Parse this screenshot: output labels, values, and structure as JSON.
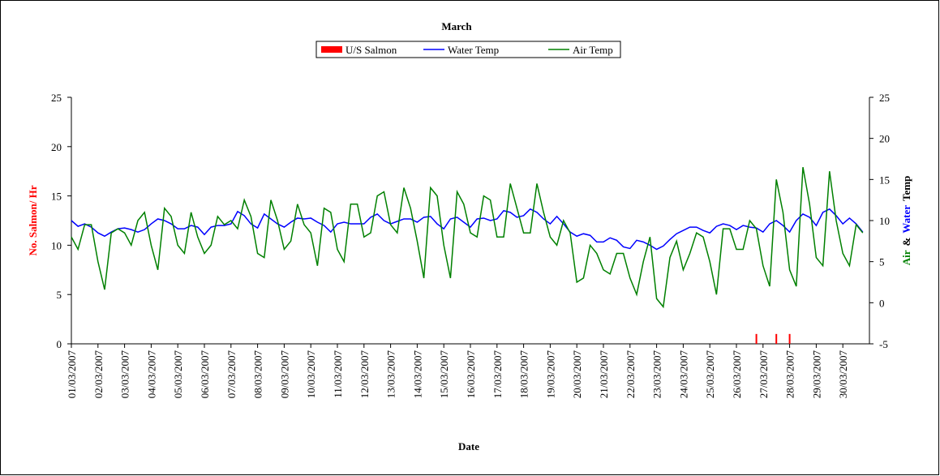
{
  "chart_data": {
    "type": "line",
    "title": "March",
    "xlabel": "Date",
    "ylabel": "No. Salmon/ Hr",
    "y2label_parts": [
      {
        "text": "Air",
        "color": "#008000"
      },
      {
        "text": "&",
        "color": "#000000"
      },
      {
        "text": "Water",
        "color": "#0000ff"
      },
      {
        "text": "Temp",
        "color": "#000000"
      }
    ],
    "xlim": [
      0,
      30
    ],
    "ylim": [
      0,
      25
    ],
    "y2lim": [
      -5,
      25
    ],
    "yticks": [
      0,
      5,
      10,
      15,
      20,
      25
    ],
    "y2ticks": [
      -5,
      0,
      5,
      10,
      15,
      20,
      25
    ],
    "xticks": [
      {
        "value": 0,
        "label": "01/03/2007"
      },
      {
        "value": 1,
        "label": "02/03/2007"
      },
      {
        "value": 2,
        "label": "03/03/2007"
      },
      {
        "value": 3,
        "label": "04/03/2007"
      },
      {
        "value": 4,
        "label": "05/03/2007"
      },
      {
        "value": 5,
        "label": "06/03/2007"
      },
      {
        "value": 6,
        "label": "07/03/2007"
      },
      {
        "value": 7,
        "label": "08/03/2007"
      },
      {
        "value": 8,
        "label": "09/03/2007"
      },
      {
        "value": 9,
        "label": "10/03/2007"
      },
      {
        "value": 10,
        "label": "11/03/2007"
      },
      {
        "value": 11,
        "label": "12/03/2007"
      },
      {
        "value": 12,
        "label": "13/03/2007"
      },
      {
        "value": 13,
        "label": "14/03/2007"
      },
      {
        "value": 14,
        "label": "15/03/2007"
      },
      {
        "value": 15,
        "label": "16/03/2007"
      },
      {
        "value": 16,
        "label": "17/03/2007"
      },
      {
        "value": 17,
        "label": "18/03/2007"
      },
      {
        "value": 18,
        "label": "19/03/2007"
      },
      {
        "value": 19,
        "label": "20/03/2007"
      },
      {
        "value": 20,
        "label": "21/03/2007"
      },
      {
        "value": 21,
        "label": "22/03/2007"
      },
      {
        "value": 22,
        "label": "23/03/2007"
      },
      {
        "value": 23,
        "label": "24/03/2007"
      },
      {
        "value": 24,
        "label": "25/03/2007"
      },
      {
        "value": 25,
        "label": "26/03/2007"
      },
      {
        "value": 26,
        "label": "27/03/2007"
      },
      {
        "value": 27,
        "label": "28/03/2007"
      },
      {
        "value": 28,
        "label": "29/03/2007"
      },
      {
        "value": 29,
        "label": "30/03/2007"
      }
    ],
    "x": [
      0,
      0.25,
      0.5,
      0.75,
      1,
      1.25,
      1.5,
      1.75,
      2,
      2.25,
      2.5,
      2.75,
      3,
      3.25,
      3.5,
      3.75,
      4,
      4.25,
      4.5,
      4.75,
      5,
      5.25,
      5.5,
      5.75,
      6,
      6.25,
      6.5,
      6.75,
      7,
      7.25,
      7.5,
      7.75,
      8,
      8.25,
      8.5,
      8.75,
      9,
      9.25,
      9.5,
      9.75,
      10,
      10.25,
      10.5,
      10.75,
      11,
      11.25,
      11.5,
      11.75,
      12,
      12.25,
      12.5,
      12.75,
      13,
      13.25,
      13.5,
      13.75,
      14,
      14.25,
      14.5,
      14.75,
      15,
      15.25,
      15.5,
      15.75,
      16,
      16.25,
      16.5,
      16.75,
      17,
      17.25,
      17.5,
      17.75,
      18,
      18.25,
      18.5,
      18.75,
      19,
      19.25,
      19.5,
      19.75,
      20,
      20.25,
      20.5,
      20.75,
      21,
      21.25,
      21.5,
      21.75,
      22,
      22.25,
      22.5,
      22.75,
      23,
      23.25,
      23.5,
      23.75,
      24,
      24.25,
      24.5,
      24.75,
      25,
      25.25,
      25.5,
      25.75,
      26,
      26.25,
      26.5,
      26.75,
      27,
      27.25,
      27.5,
      27.75,
      28,
      28.25,
      28.5,
      28.75,
      29,
      29.25,
      29.5,
      29.75
    ],
    "series": [
      {
        "name": "U/S Salmon",
        "color": "#ff0000",
        "kind": "bar",
        "x": [
          25.75,
          26.5,
          27
        ],
        "values": [
          1,
          1,
          1
        ]
      },
      {
        "name": "Water Temp",
        "color": "#0000ff",
        "kind": "line",
        "axis": "y2",
        "values": [
          10,
          9.3,
          9.6,
          9.2,
          8.5,
          8.1,
          8.6,
          9.0,
          9.1,
          8.9,
          8.6,
          8.9,
          9.6,
          10.2,
          10.0,
          9.6,
          9.0,
          9.0,
          9.4,
          9.2,
          8.3,
          9.2,
          9.4,
          9.4,
          9.6,
          11.1,
          10.6,
          9.6,
          9.1,
          10.8,
          10.2,
          9.6,
          9.2,
          9.8,
          10.3,
          10.2,
          10.3,
          9.8,
          9.4,
          8.6,
          9.6,
          9.8,
          9.6,
          9.6,
          9.6,
          10.4,
          10.8,
          10.0,
          9.6,
          9.9,
          10.2,
          10.2,
          9.8,
          10.4,
          10.5,
          9.6,
          9.0,
          10.2,
          10.4,
          9.8,
          9.2,
          10.2,
          10.3,
          10.0,
          10.2,
          11.2,
          11.0,
          10.4,
          10.6,
          11.4,
          11.0,
          10.2,
          9.6,
          10.5,
          9.6,
          8.6,
          8.1,
          8.4,
          8.2,
          7.4,
          7.4,
          7.9,
          7.6,
          6.8,
          6.6,
          7.6,
          7.4,
          7.0,
          6.5,
          6.9,
          7.7,
          8.4,
          8.8,
          9.2,
          9.2,
          8.8,
          8.5,
          9.3,
          9.6,
          9.4,
          8.9,
          9.4,
          9.2,
          9.1,
          8.6,
          9.6,
          10.0,
          9.4,
          8.6,
          10.0,
          10.8,
          10.4,
          9.4,
          11.0,
          11.4,
          10.6,
          9.6,
          10.3,
          9.6,
          8.6
        ]
      },
      {
        "name": "Air Temp",
        "color": "#008000",
        "kind": "line",
        "axis": "y2",
        "values": [
          8,
          6.5,
          9.5,
          9.5,
          5,
          1.6,
          8.5,
          9.0,
          8.5,
          7,
          10,
          11,
          7,
          4,
          11.5,
          10.5,
          7,
          6,
          11,
          8,
          6,
          7,
          10.5,
          9.5,
          10,
          9,
          12.5,
          10.5,
          6,
          5.5,
          12.5,
          10,
          6.5,
          7.5,
          12,
          9.5,
          8.5,
          4.5,
          11.5,
          11,
          6.5,
          5,
          12,
          12,
          8,
          8.5,
          13,
          13.5,
          9.5,
          8.5,
          14,
          11.5,
          7.5,
          3,
          14,
          13,
          7,
          3,
          13.5,
          12,
          8.5,
          8,
          13,
          12.5,
          8,
          8,
          14.5,
          11.5,
          8.5,
          8.5,
          14.5,
          11,
          8,
          7,
          10,
          8.5,
          2.5,
          3,
          7,
          6,
          4,
          3.5,
          6,
          6,
          3,
          1,
          5,
          8,
          0.5,
          -0.5,
          5.5,
          7.5,
          4,
          6,
          8.5,
          8,
          5,
          1,
          9,
          9,
          6.5,
          6.5,
          10,
          9,
          4.5,
          2,
          15,
          11,
          4,
          2,
          16.5,
          12,
          5.5,
          4.5,
          16,
          10,
          6,
          4.5,
          9.5,
          8.5
        ]
      }
    ]
  }
}
